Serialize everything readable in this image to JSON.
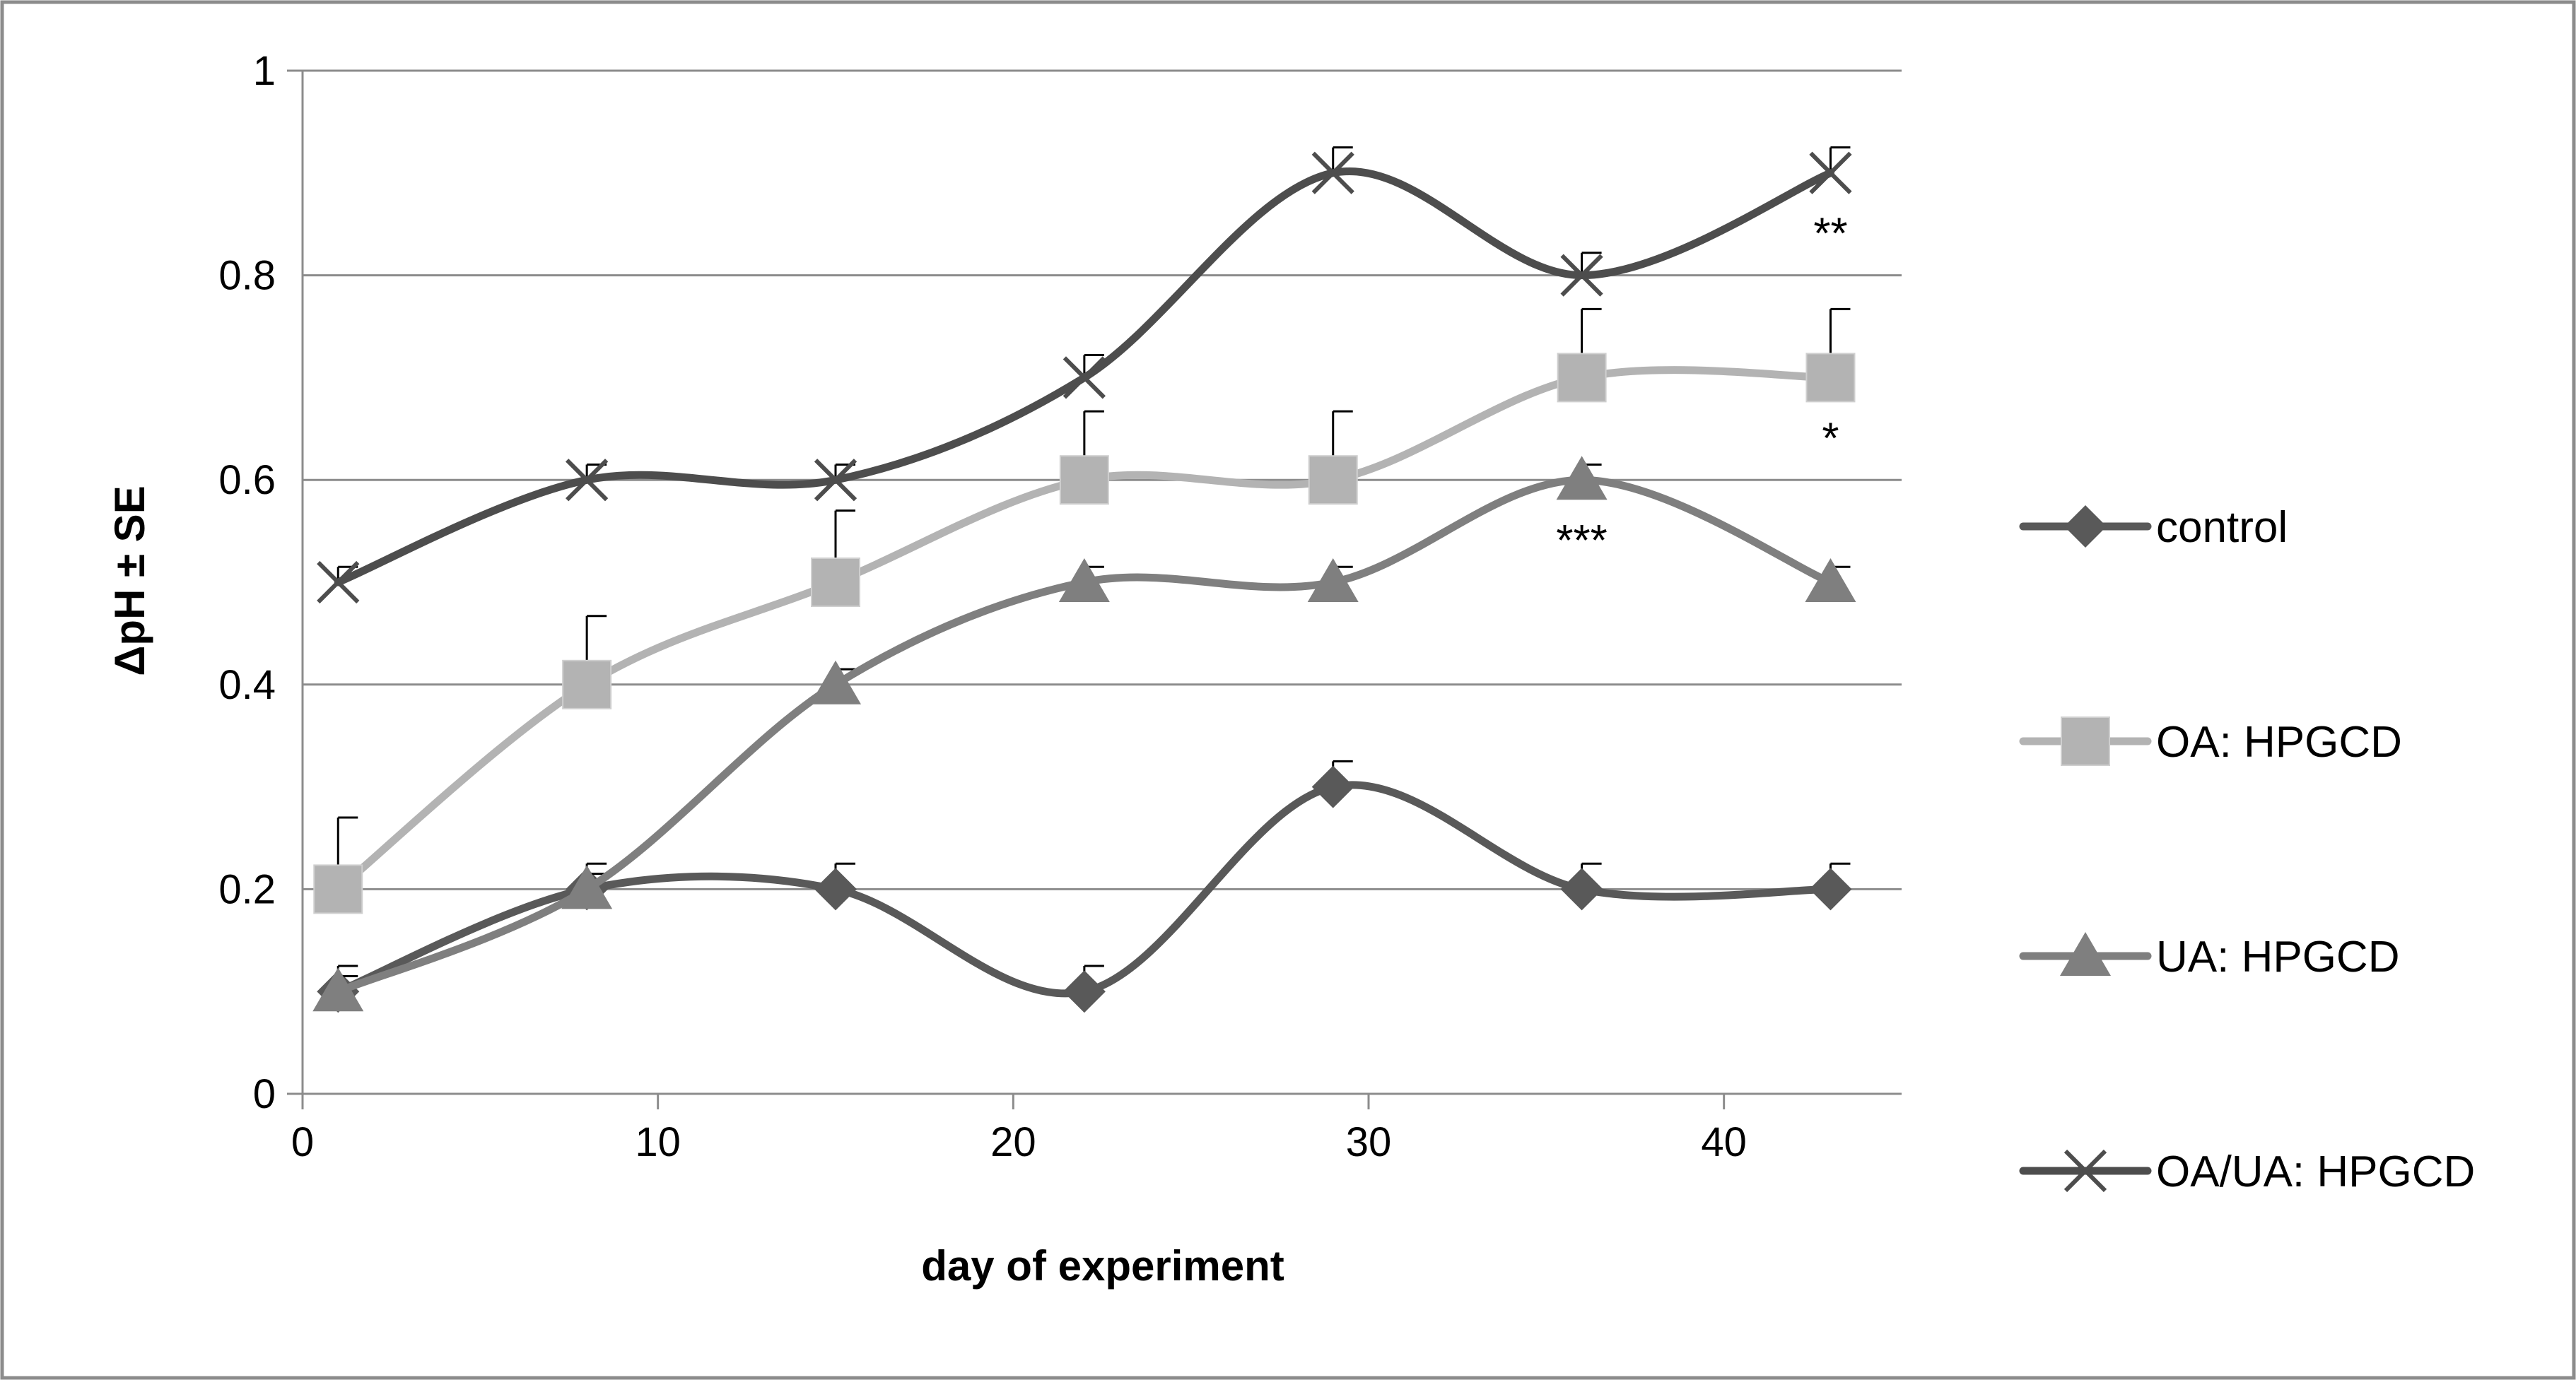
{
  "chart_data": {
    "type": "line",
    "title": "",
    "xlabel": "day of experiment",
    "ylabel": "ΔpH ± SE",
    "xlim": [
      0,
      45
    ],
    "ylim": [
      0,
      1
    ],
    "xticks": [
      0,
      10,
      20,
      30,
      40
    ],
    "xtick_labels": [
      "0",
      "10",
      "20",
      "30",
      "40"
    ],
    "yticks": [
      0,
      0.2,
      0.4,
      0.6,
      0.8,
      1
    ],
    "ytick_labels": [
      "0",
      "0.2",
      "0.4",
      "0.6",
      "0.8",
      "1"
    ],
    "grid": "horizontal",
    "legend_position": "right",
    "x": [
      1,
      8,
      15,
      22,
      29,
      36,
      43
    ],
    "series": [
      {
        "name": "control",
        "marker": "diamond",
        "color": "#595959",
        "values": [
          0.1,
          0.2,
          0.2,
          0.1,
          0.3,
          0.2,
          0.2
        ],
        "errors": [
          0.025,
          0.025,
          0.025,
          0.025,
          0.025,
          0.025,
          0.025
        ]
      },
      {
        "name": "OA: HPGCD",
        "marker": "square",
        "color": "#b3b3b3",
        "values": [
          0.2,
          0.4,
          0.5,
          0.6,
          0.6,
          0.7,
          0.7
        ],
        "errors": [
          0.07,
          0.067,
          0.07,
          0.067,
          0.067,
          0.067,
          0.067
        ]
      },
      {
        "name": "UA: HPGCD",
        "marker": "triangle",
        "color": "#7f7f7f",
        "values": [
          0.1,
          0.2,
          0.4,
          0.5,
          0.5,
          0.6,
          0.5
        ],
        "errors": [
          0.015,
          0.015,
          0.015,
          0.015,
          0.015,
          0.015,
          0.015
        ]
      },
      {
        "name": "OA/UA: HPGCD",
        "marker": "x",
        "color": "#4d4d4d",
        "values": [
          0.5,
          0.6,
          0.6,
          0.7,
          0.9,
          0.8,
          0.9
        ],
        "errors": [
          0.015,
          0.015,
          0.015,
          0.022,
          0.025,
          0.022,
          0.025
        ]
      }
    ],
    "annotations": [
      {
        "text": "**",
        "x": 43,
        "y": 0.84
      },
      {
        "text": "*",
        "x": 43,
        "y": 0.64
      },
      {
        "text": "***",
        "x": 36,
        "y": 0.54
      }
    ]
  }
}
